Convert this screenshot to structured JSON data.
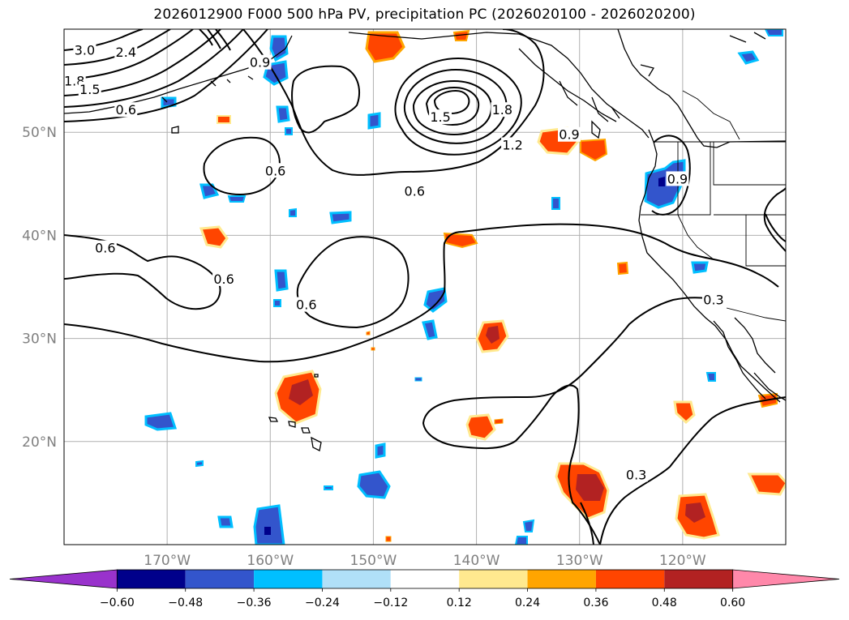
{
  "title": "2026012900 F000 500 hPa PV, precipitation PC (2026020100 - 2026020200)",
  "map": {
    "lon_range": [
      -180,
      -110
    ],
    "lat_range": [
      10,
      60
    ],
    "lon_ticks": [
      {
        "lon": -170,
        "label": "170°W"
      },
      {
        "lon": -160,
        "label": "160°W"
      },
      {
        "lon": -150,
        "label": "150°W"
      },
      {
        "lon": -140,
        "label": "140°W"
      },
      {
        "lon": -130,
        "label": "130°W"
      },
      {
        "lon": -120,
        "label": "120°W"
      }
    ],
    "lat_ticks": [
      {
        "lat": 20,
        "label": "20°N"
      },
      {
        "lat": 30,
        "label": "30°N"
      },
      {
        "lat": 40,
        "label": "40°N"
      },
      {
        "lat": 50,
        "label": "50°N"
      }
    ]
  },
  "contour_labels": [
    {
      "text": "3.0",
      "lon": -178,
      "lat": 58
    },
    {
      "text": "2.4",
      "lon": -174,
      "lat": 57.8
    },
    {
      "text": "1.8",
      "lon": -179,
      "lat": 55
    },
    {
      "text": "1.5",
      "lon": -177.5,
      "lat": 54.2
    },
    {
      "text": "0.9",
      "lon": -161,
      "lat": 56.8
    },
    {
      "text": "0.6",
      "lon": -174,
      "lat": 52.2
    },
    {
      "text": "0.6",
      "lon": -159.5,
      "lat": 46.3
    },
    {
      "text": "0.6",
      "lon": -146,
      "lat": 44.3
    },
    {
      "text": "1.8",
      "lon": -137.5,
      "lat": 52.2
    },
    {
      "text": "1.5",
      "lon": -143.5,
      "lat": 51.5
    },
    {
      "text": "1.2",
      "lon": -136.5,
      "lat": 48.8
    },
    {
      "text": "0.9",
      "lon": -131,
      "lat": 49.8
    },
    {
      "text": "0.6",
      "lon": -176,
      "lat": 38.8
    },
    {
      "text": "0.6",
      "lon": -164.5,
      "lat": 35.8
    },
    {
      "text": "0.6",
      "lon": -156.5,
      "lat": 33.3
    },
    {
      "text": "0.3",
      "lon": -117,
      "lat": 33.8
    },
    {
      "text": "0.3",
      "lon": -124.5,
      "lat": 16.8
    },
    {
      "text": "0.9",
      "lon": -120.5,
      "lat": 45.5
    }
  ],
  "colorbar": {
    "boundaries": [
      "-0.60",
      "-0.48",
      "-0.36",
      "-0.24",
      "-0.12",
      "0.12",
      "0.24",
      "0.36",
      "0.48",
      "0.60"
    ],
    "colors": [
      "#9932cc",
      "#00008b",
      "#3355cc",
      "#00bfff",
      "#b0e0f8",
      "#ffffff",
      "#ffe98f",
      "#ffa500",
      "#ff4500",
      "#b22222",
      "#ff88aa"
    ]
  }
}
